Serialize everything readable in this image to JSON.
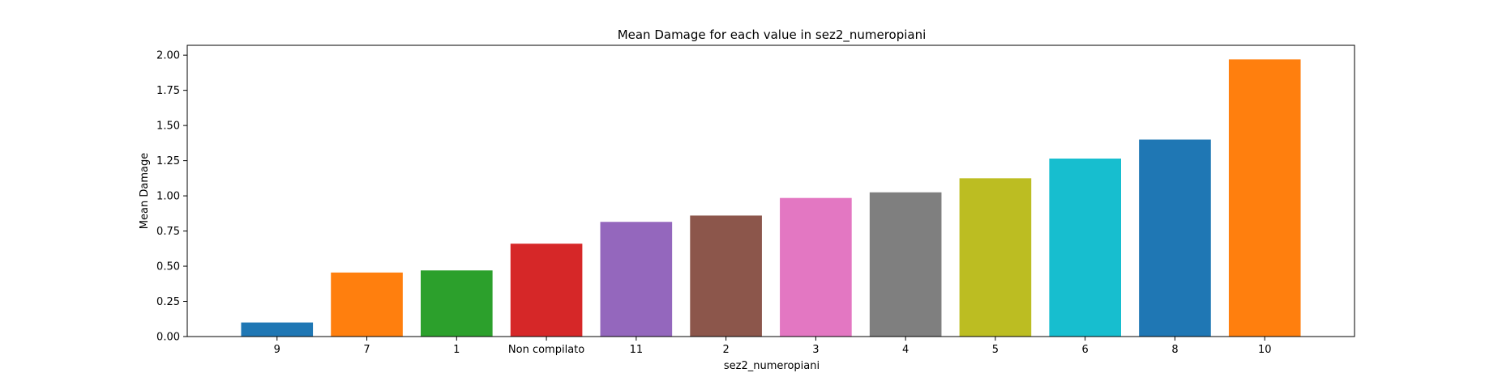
{
  "chart_data": {
    "type": "bar",
    "title": "Mean Damage for each value in sez2_numeropiani",
    "xlabel": "sez2_numeropiani",
    "ylabel": "Mean Damage",
    "categories": [
      "9",
      "7",
      "1",
      "Non compilato",
      "11",
      "2",
      "3",
      "4",
      "5",
      "6",
      "8",
      "10"
    ],
    "values": [
      0.1,
      0.455,
      0.47,
      0.66,
      0.815,
      0.86,
      0.985,
      1.025,
      1.125,
      1.265,
      1.4,
      1.97
    ],
    "colors": [
      "#1f77b4",
      "#ff7f0e",
      "#2ca02c",
      "#d62728",
      "#9467bd",
      "#8c564b",
      "#e377c2",
      "#7f7f7f",
      "#bcbd22",
      "#17becf",
      "#1f77b4",
      "#ff7f0e"
    ],
    "ylim": [
      0,
      2.07
    ],
    "yticks": [
      0.0,
      0.25,
      0.5,
      0.75,
      1.0,
      1.25,
      1.5,
      1.75,
      2.0
    ],
    "ytick_labels": [
      "0.00",
      "0.25",
      "0.50",
      "0.75",
      "1.00",
      "1.25",
      "1.50",
      "1.75",
      "2.00"
    ],
    "grid": false,
    "legend": "none"
  }
}
